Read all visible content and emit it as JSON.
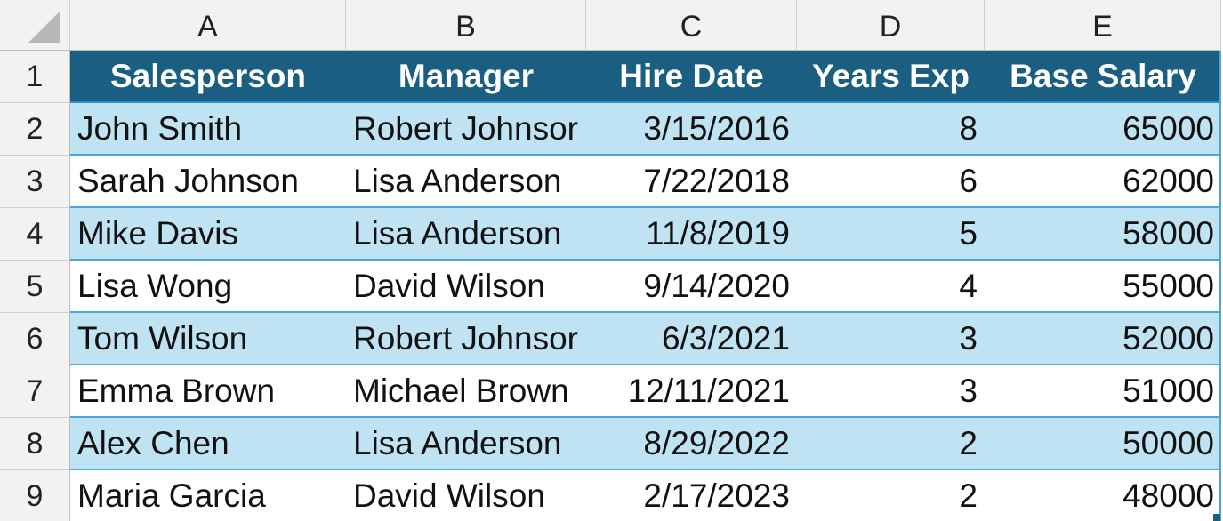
{
  "columns": [
    "A",
    "B",
    "C",
    "D",
    "E"
  ],
  "row_numbers": [
    "1",
    "2",
    "3",
    "4",
    "5",
    "6",
    "7",
    "8",
    "9"
  ],
  "header": [
    "Salesperson",
    "Manager",
    "Hire Date",
    "Years Exp",
    "Base Salary"
  ],
  "rows": [
    [
      "John Smith",
      "Robert Johnsor",
      "3/15/2016",
      "8",
      "65000"
    ],
    [
      "Sarah Johnson",
      "Lisa Anderson",
      "7/22/2018",
      "6",
      "62000"
    ],
    [
      "Mike Davis",
      "Lisa Anderson",
      "11/8/2019",
      "5",
      "58000"
    ],
    [
      "Lisa Wong",
      "David Wilson",
      "9/14/2020",
      "4",
      "55000"
    ],
    [
      "Tom Wilson",
      "Robert Johnsor",
      "6/3/2021",
      "3",
      "52000"
    ],
    [
      "Emma Brown",
      "Michael Brown",
      "12/11/2021",
      "3",
      "51000"
    ],
    [
      "Alex Chen",
      "Lisa Anderson",
      "8/29/2022",
      "2",
      "50000"
    ],
    [
      "Maria Garcia",
      "David Wilson",
      "2/17/2023",
      "2",
      "48000"
    ]
  ],
  "colors": {
    "header_fill": "#1a5f82",
    "band_fill": "#c0e3f3",
    "border": "#4aa8d8"
  }
}
